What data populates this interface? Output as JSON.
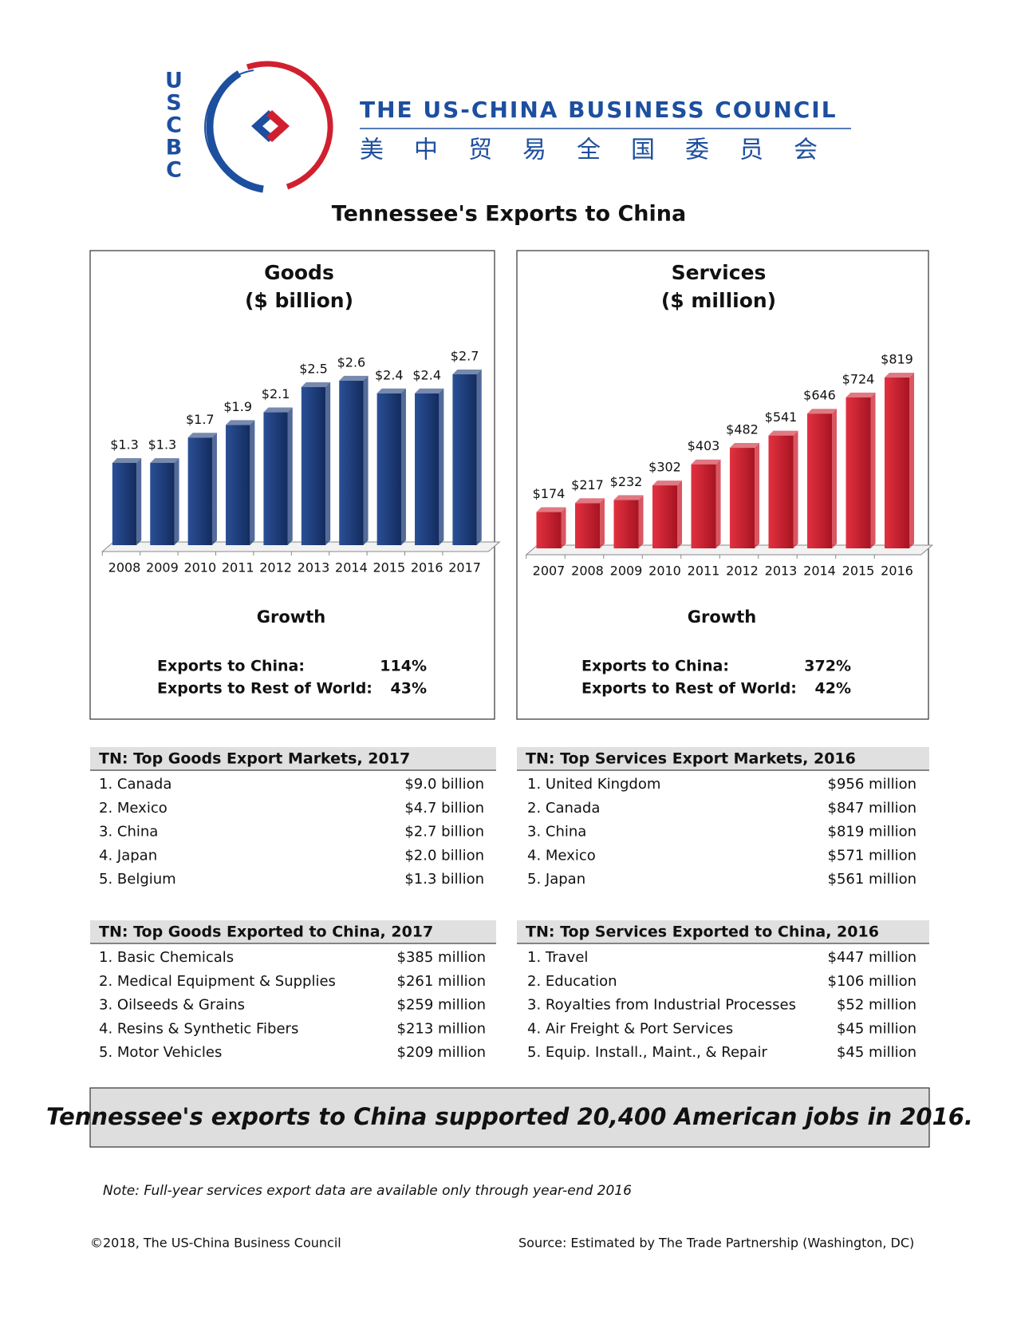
{
  "header": {
    "logo_letters": [
      "U",
      "S",
      "C",
      "B",
      "C"
    ],
    "organization": "THE US-CHINA BUSINESS COUNCIL",
    "organization_chinese": "美中贸易全国委员会"
  },
  "title": "Tennessee's Exports to China",
  "chart_data": [
    {
      "type": "bar",
      "title": "Goods",
      "subtitle": "($ billion)",
      "categories": [
        "2008",
        "2009",
        "2010",
        "2011",
        "2012",
        "2013",
        "2014",
        "2015",
        "2016",
        "2017"
      ],
      "values": [
        1.3,
        1.3,
        1.7,
        1.9,
        2.1,
        2.5,
        2.6,
        2.4,
        2.4,
        2.7
      ],
      "value_labels": [
        "$1.3",
        "$1.3",
        "$1.7",
        "$1.9",
        "$2.1",
        "$2.5",
        "$2.6",
        "$2.4",
        "$2.4",
        "$2.7"
      ],
      "color": "#1b3a78"
    },
    {
      "type": "bar",
      "title": "Services",
      "subtitle": "($ million)",
      "categories": [
        "2007",
        "2008",
        "2009",
        "2010",
        "2011",
        "2012",
        "2013",
        "2014",
        "2015",
        "2016"
      ],
      "values": [
        174,
        217,
        232,
        302,
        403,
        482,
        541,
        646,
        724,
        819
      ],
      "value_labels": [
        "$174",
        "$217",
        "$232",
        "$302",
        "$403",
        "$482",
        "$541",
        "$646",
        "$724",
        "$819"
      ],
      "color": "#cc1f2e"
    }
  ],
  "growth": [
    {
      "title": "Growth",
      "rows": [
        [
          "Exports to China:",
          "114%"
        ],
        [
          "Exports to Rest of World:",
          "43%"
        ]
      ]
    },
    {
      "title": "Growth",
      "rows": [
        [
          "Exports to China:",
          "372%"
        ],
        [
          "Exports to Rest of World:",
          "42%"
        ]
      ]
    }
  ],
  "tables": [
    {
      "title": "TN: Top Goods Export Markets, 2017",
      "rows": [
        [
          "1. Canada",
          "$9.0 billion"
        ],
        [
          "2. Mexico",
          "$4.7 billion"
        ],
        [
          "3. China",
          "$2.7 billion"
        ],
        [
          "4. Japan",
          "$2.0 billion"
        ],
        [
          "5. Belgium",
          "$1.3 billion"
        ]
      ]
    },
    {
      "title": "TN: Top Services Export Markets, 2016",
      "rows": [
        [
          "1. United Kingdom",
          "$956 million"
        ],
        [
          "2. Canada",
          "$847 million"
        ],
        [
          "3. China",
          "$819 million"
        ],
        [
          "4. Mexico",
          "$571 million"
        ],
        [
          "5. Japan",
          "$561 million"
        ]
      ]
    },
    {
      "title": "TN: Top Goods Exported to China, 2017",
      "rows": [
        [
          "1. Basic Chemicals",
          "$385 million"
        ],
        [
          "2. Medical Equipment & Supplies",
          "$261 million"
        ],
        [
          "3. Oilseeds & Grains",
          "$259 million"
        ],
        [
          "4. Resins & Synthetic Fibers",
          "$213 million"
        ],
        [
          "5. Motor Vehicles",
          "$209 million"
        ]
      ]
    },
    {
      "title": "TN: Top Services Exported to China, 2016",
      "rows": [
        [
          "1. Travel",
          "$447 million"
        ],
        [
          "2. Education",
          "$106 million"
        ],
        [
          "3. Royalties from Industrial Processes",
          "$52 million"
        ],
        [
          "4. Air Freight & Port Services",
          "$45 million"
        ],
        [
          "5. Equip. Install., Maint., & Repair",
          "$45 million"
        ]
      ]
    }
  ],
  "banner": "Tennessee's exports to China supported 20,400 American jobs in 2016.",
  "note": "Note: Full-year services export data are available only through year-end 2016",
  "footer": {
    "copyright": "©2018, The US-China Business Council",
    "source": "Source: Estimated by The Trade Partnership (Washington, DC)"
  }
}
